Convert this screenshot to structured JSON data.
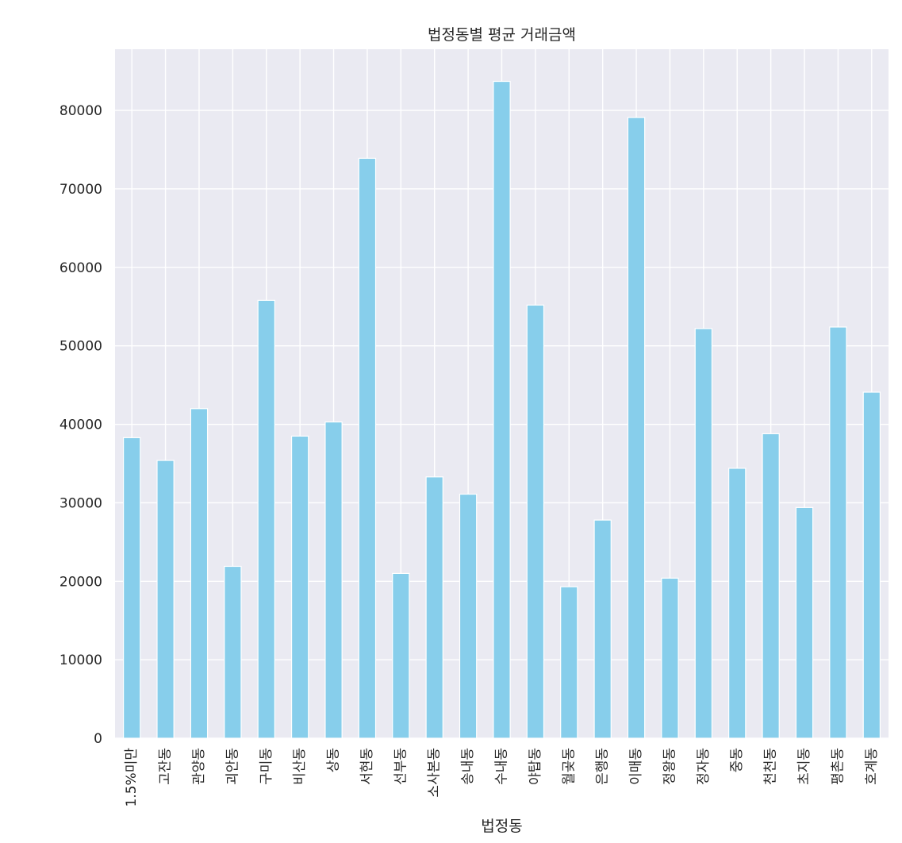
{
  "chart_data": {
    "type": "bar",
    "title": "법정동별 평균 거래금액",
    "xlabel": "법정동",
    "ylabel": "",
    "categories": [
      "1.5%미만",
      "고잔동",
      "관양동",
      "괴안동",
      "구미동",
      "비산동",
      "상동",
      "서현동",
      "선부동",
      "소사본동",
      "송내동",
      "수내동",
      "야탑동",
      "월곶동",
      "은행동",
      "이매동",
      "정왕동",
      "정자동",
      "중동",
      "천천동",
      "초지동",
      "평촌동",
      "호계동"
    ],
    "values": [
      38300,
      35400,
      42000,
      21900,
      55800,
      38500,
      40300,
      73900,
      21000,
      33300,
      31100,
      83700,
      55200,
      19300,
      27800,
      79100,
      20400,
      52200,
      34400,
      38800,
      29400,
      52400,
      44100
    ],
    "ylim": [
      0,
      87800
    ],
    "yticks": [
      0,
      10000,
      20000,
      30000,
      40000,
      50000,
      60000,
      70000,
      80000
    ],
    "grid": true,
    "colors": {
      "bar": "#87ceeb",
      "plot_background": "#eaeaf2",
      "grid": "#ffffff",
      "text": "#262626"
    }
  }
}
